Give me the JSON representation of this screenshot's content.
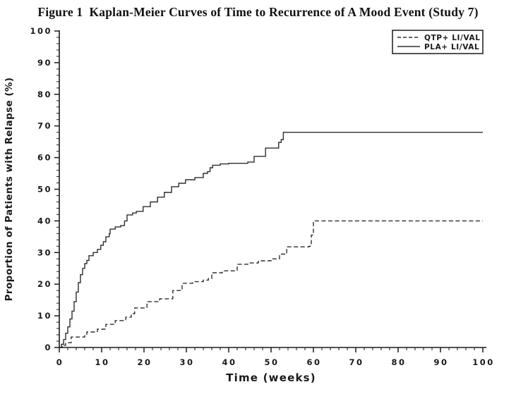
{
  "figure": {
    "title": "Figure 1  Kaplan-Meier Curves of Time to Recurrence of A Mood Event (Study 7)"
  },
  "chart_data": {
    "type": "line",
    "subtype": "kaplan_meier_step",
    "title": "Figure 1  Kaplan-Meier Curves of Time to Recurrence of A Mood Event (Study 7)",
    "xlabel": "Time (weeks)",
    "ylabel": "Proportion of Patients with Relapse (%)",
    "xlim": [
      0,
      100
    ],
    "ylim": [
      0,
      100
    ],
    "x_major_tick_step": 10,
    "x_minor_tick_step": 2,
    "y_major_tick_step": 10,
    "y_minor_tick_step": 2,
    "x_tick_labels": [
      "0",
      "10",
      "20",
      "30",
      "40",
      "50",
      "60",
      "70",
      "80",
      "90",
      "100"
    ],
    "y_tick_labels": [
      "0",
      "10",
      "20",
      "30",
      "40",
      "50",
      "60",
      "70",
      "80",
      "90",
      "100"
    ],
    "grid": false,
    "legend": {
      "position": "top-right-inside",
      "entries": [
        "QTP+ LI/VAL",
        "PLA+ LI/VAL"
      ]
    },
    "colors": {
      "background": "#ffffff",
      "axis": "#1a1a1a",
      "curve": "#2e2e2e",
      "text": "#1a1a1a"
    },
    "series": [
      {
        "name": "QTP+ LI/VAL",
        "line_style": "dashed",
        "final_value": 40,
        "points": [
          [
            0,
            0
          ],
          [
            0.7,
            0.7
          ],
          [
            1.5,
            1.5
          ],
          [
            2.8,
            3.3
          ],
          [
            6,
            4
          ],
          [
            6.5,
            4.9
          ],
          [
            9,
            5.8
          ],
          [
            11,
            7.3
          ],
          [
            13.2,
            8.5
          ],
          [
            15.7,
            9.6
          ],
          [
            17,
            10.7
          ],
          [
            17.8,
            12.5
          ],
          [
            20.7,
            14.5
          ],
          [
            23.7,
            15.4
          ],
          [
            26.8,
            18
          ],
          [
            29,
            20.3
          ],
          [
            31.5,
            20.8
          ],
          [
            34,
            21.3
          ],
          [
            35.2,
            21.8
          ],
          [
            36,
            23.6
          ],
          [
            38.5,
            24.2
          ],
          [
            42,
            26.3
          ],
          [
            44.5,
            26.7
          ],
          [
            47,
            27.4
          ],
          [
            50,
            28
          ],
          [
            52,
            29.5
          ],
          [
            53.7,
            31.8
          ],
          [
            59,
            32
          ],
          [
            59.5,
            35.5
          ],
          [
            60,
            40
          ],
          [
            100,
            40
          ]
        ]
      },
      {
        "name": "PLA+ LI/VAL",
        "line_style": "solid",
        "final_value": 68,
        "points": [
          [
            0,
            0
          ],
          [
            0.5,
            1
          ],
          [
            1,
            2.5
          ],
          [
            1.5,
            4.5
          ],
          [
            2,
            6.5
          ],
          [
            2.5,
            9
          ],
          [
            3,
            11.5
          ],
          [
            3.5,
            14.5
          ],
          [
            4,
            17.5
          ],
          [
            4.5,
            20.5
          ],
          [
            5,
            23
          ],
          [
            5.5,
            25
          ],
          [
            6,
            26.5
          ],
          [
            6.5,
            27.5
          ],
          [
            7,
            29
          ],
          [
            8,
            30
          ],
          [
            9,
            31
          ],
          [
            9.8,
            32.3
          ],
          [
            10.4,
            33.4
          ],
          [
            11,
            35
          ],
          [
            11.8,
            36
          ],
          [
            12,
            37.4
          ],
          [
            13.2,
            38.1
          ],
          [
            14.5,
            38.5
          ],
          [
            15.4,
            40
          ],
          [
            16,
            41.9
          ],
          [
            17.3,
            42.5
          ],
          [
            18.2,
            43
          ],
          [
            19.8,
            44.5
          ],
          [
            21.5,
            46
          ],
          [
            23.2,
            47.5
          ],
          [
            24.8,
            49
          ],
          [
            26.5,
            50.8
          ],
          [
            28.2,
            51.9
          ],
          [
            29.8,
            53
          ],
          [
            32,
            53.7
          ],
          [
            34,
            55
          ],
          [
            35,
            55.6
          ],
          [
            35.6,
            56.8
          ],
          [
            36.2,
            57.6
          ],
          [
            38,
            58
          ],
          [
            40,
            58.2
          ],
          [
            44.5,
            58.6
          ],
          [
            46,
            60.4
          ],
          [
            48.7,
            63
          ],
          [
            51.8,
            64.8
          ],
          [
            52.4,
            65.7
          ],
          [
            52.9,
            68
          ],
          [
            100,
            68
          ]
        ]
      }
    ]
  }
}
